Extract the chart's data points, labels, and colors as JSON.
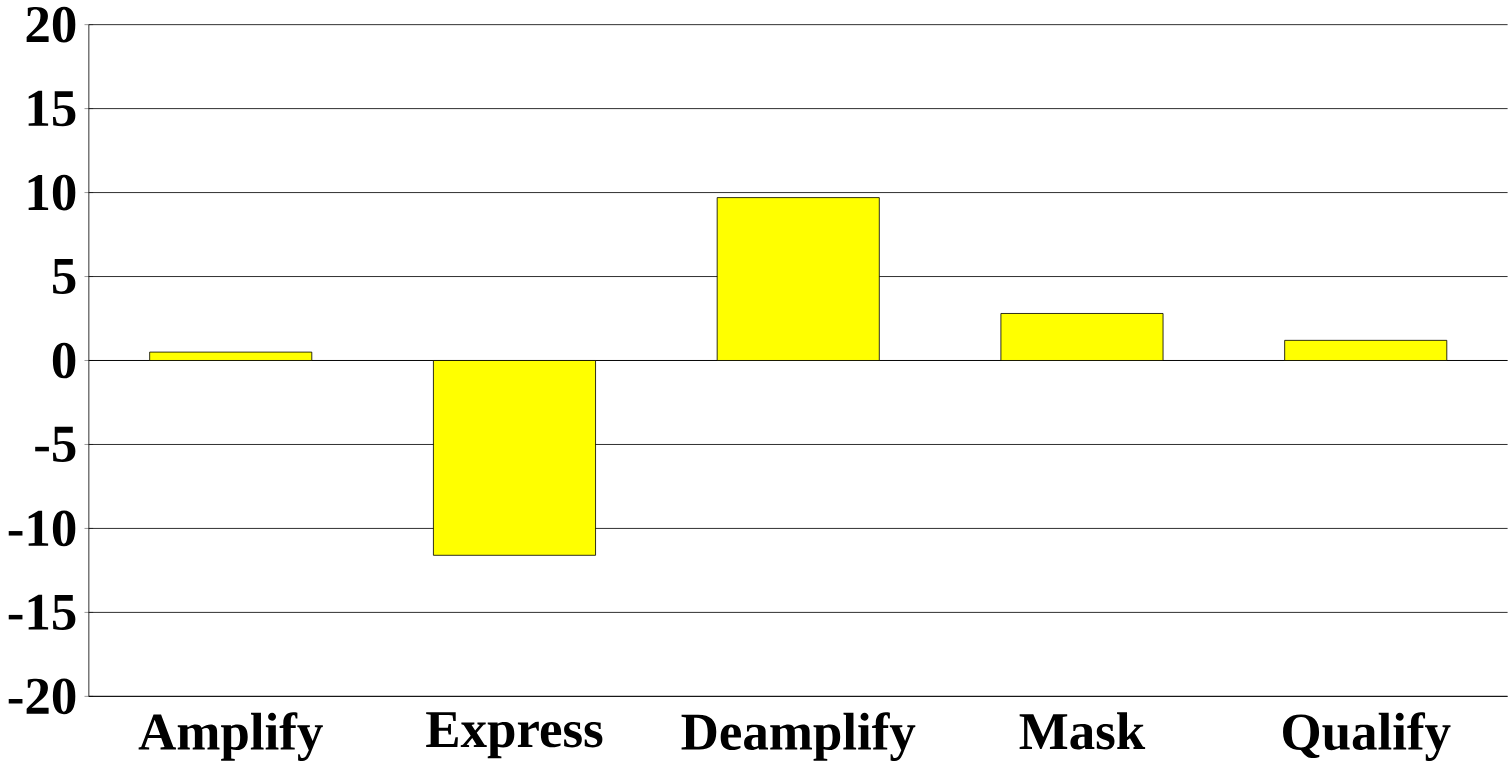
{
  "chart_data": {
    "type": "bar",
    "categories": [
      "Amplify",
      "Express",
      "Deamplify",
      "Mask",
      "Qualify"
    ],
    "values": [
      0.5,
      -11.6,
      9.7,
      2.8,
      1.2
    ],
    "color": "#ffff00",
    "ylim": [
      -20,
      20
    ],
    "yticks": [
      -20,
      -15,
      -10,
      -5,
      0,
      5,
      10,
      15,
      20
    ],
    "grid": "y"
  }
}
